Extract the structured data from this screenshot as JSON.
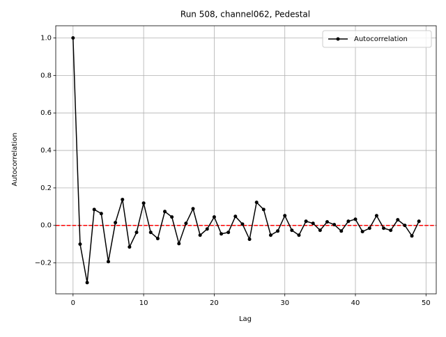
{
  "chart_data": {
    "type": "line",
    "title": "Run 508, channel062, Pedestal",
    "xlabel": "Lag",
    "ylabel": "Autocorrelation",
    "x": [
      0,
      1,
      2,
      3,
      4,
      5,
      6,
      7,
      8,
      9,
      10,
      11,
      12,
      13,
      14,
      15,
      16,
      17,
      18,
      19,
      20,
      21,
      22,
      23,
      24,
      25,
      26,
      27,
      28,
      29,
      30,
      31,
      32,
      33,
      34,
      35,
      36,
      37,
      38,
      39,
      40,
      41,
      42,
      43,
      44,
      45,
      46,
      47,
      48,
      49
    ],
    "series": [
      {
        "name": "Autocorrelation",
        "color": "#000000",
        "marker": "circle",
        "values": [
          1.0,
          -0.1,
          -0.305,
          0.085,
          0.063,
          -0.193,
          0.015,
          0.138,
          -0.115,
          -0.037,
          0.119,
          -0.037,
          -0.07,
          0.074,
          0.045,
          -0.097,
          0.011,
          0.089,
          -0.052,
          -0.019,
          0.045,
          -0.045,
          -0.037,
          0.048,
          0.007,
          -0.074,
          0.123,
          0.085,
          -0.052,
          -0.03,
          0.052,
          -0.026,
          -0.052,
          0.022,
          0.011,
          -0.026,
          0.019,
          0.004,
          -0.03,
          0.022,
          0.033,
          -0.033,
          -0.015,
          0.052,
          -0.015,
          -0.026,
          0.03,
          0.0,
          -0.056,
          0.022
        ]
      }
    ],
    "hline": {
      "value": 0,
      "color": "#ff0000",
      "style": "dashed"
    },
    "xlim": [
      -2.45,
      51.45
    ],
    "xticks": [
      0,
      10,
      20,
      30,
      40,
      50
    ],
    "ylim": [
      -0.365,
      1.065
    ],
    "yticks": [
      {
        "value": -0.2,
        "label": "−0.2"
      },
      {
        "value": 0,
        "label": "0.0"
      },
      {
        "value": 0.2,
        "label": "0.2"
      },
      {
        "value": 0.4,
        "label": "0.4"
      },
      {
        "value": 0.6,
        "label": "0.6"
      },
      {
        "value": 0.8,
        "label": "0.8"
      },
      {
        "value": 1.0,
        "label": "1.0"
      }
    ],
    "grid": true,
    "legend": "upper right"
  }
}
